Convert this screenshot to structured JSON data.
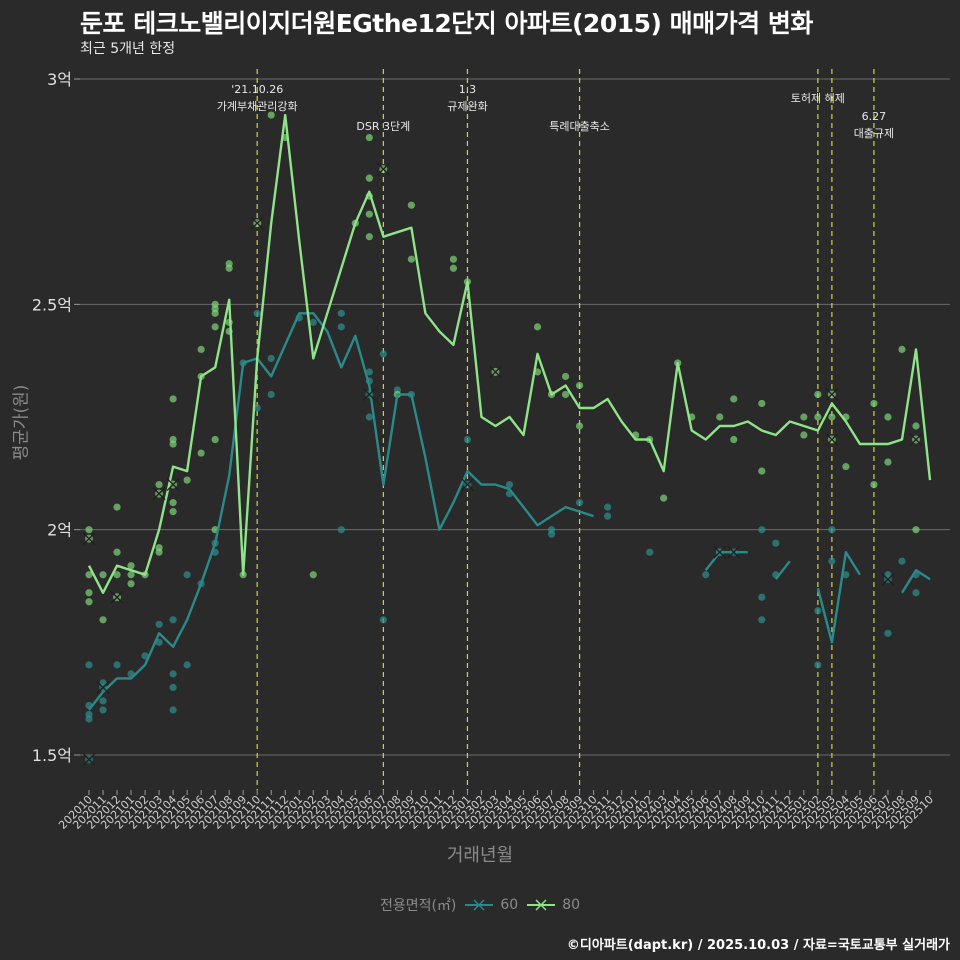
{
  "chart_data": {
    "type": "line",
    "title": "둔포 테크노밸리이지더원EGthe12단지 아파트(2015) 매매가격 변화",
    "subtitle": "최근 5개년 한정",
    "xlabel": "거래년월",
    "ylabel": "평균가(원)",
    "yticks": [
      {
        "value": 1.5,
        "label": "1.5억"
      },
      {
        "value": 2.0,
        "label": "2억"
      },
      {
        "value": 2.5,
        "label": "2.5억"
      },
      {
        "value": 3.0,
        "label": "3억"
      }
    ],
    "ylim": [
      1.42,
      3.07
    ],
    "y_unit": "억원",
    "categories": [
      "202010",
      "202011",
      "202012",
      "202101",
      "202102",
      "202103",
      "202104",
      "202105",
      "202106",
      "202107",
      "202108",
      "202109",
      "202110",
      "202111",
      "202112",
      "202201",
      "202202",
      "202203",
      "202204",
      "202205",
      "202206",
      "202207",
      "202208",
      "202209",
      "202210",
      "202211",
      "202212",
      "202301",
      "202302",
      "202303",
      "202304",
      "202305",
      "202306",
      "202307",
      "202308",
      "202309",
      "202310",
      "202311",
      "202312",
      "202401",
      "202402",
      "202403",
      "202404",
      "202405",
      "202406",
      "202407",
      "202408",
      "202409",
      "202410",
      "202411",
      "202412",
      "202501",
      "202502",
      "202503",
      "202504",
      "202505",
      "202506",
      "202507",
      "202508",
      "202509",
      "202510"
    ],
    "legend_title": "전용면적(㎡)",
    "series": [
      {
        "name": "60",
        "color": "#2a8a8a",
        "values": [
          1.6,
          1.64,
          1.67,
          1.67,
          1.7,
          1.77,
          1.74,
          1.8,
          1.88,
          1.97,
          2.12,
          2.37,
          2.38,
          2.34,
          2.41,
          2.48,
          2.48,
          2.44,
          2.36,
          2.43,
          2.32,
          2.1,
          2.3,
          2.3,
          2.16,
          2.0,
          2.06,
          2.13,
          2.1,
          2.1,
          2.09,
          2.05,
          2.01,
          2.03,
          2.05,
          2.04,
          2.03,
          null,
          null,
          null,
          1.95,
          null,
          null,
          null,
          1.91,
          1.95,
          1.95,
          1.95,
          null,
          1.89,
          1.93,
          null,
          1.87,
          1.75,
          1.95,
          1.9,
          null,
          null,
          1.86,
          1.91,
          1.89
        ]
      },
      {
        "name": "80",
        "color": "#8fe388",
        "values": [
          1.92,
          1.86,
          1.92,
          1.91,
          1.9,
          2.0,
          2.14,
          2.13,
          2.34,
          2.36,
          2.51,
          1.9,
          2.38,
          2.68,
          2.92,
          2.64,
          2.38,
          2.48,
          2.58,
          2.68,
          2.75,
          2.65,
          2.66,
          2.67,
          2.48,
          2.44,
          2.41,
          2.55,
          2.25,
          2.23,
          2.25,
          2.21,
          2.39,
          2.3,
          2.32,
          2.27,
          2.27,
          2.29,
          2.24,
          2.2,
          2.2,
          2.13,
          2.37,
          2.22,
          2.2,
          2.23,
          2.23,
          2.24,
          2.22,
          2.21,
          2.24,
          2.23,
          2.22,
          2.28,
          2.24,
          2.19,
          2.19,
          2.19,
          2.2,
          2.4,
          2.11
        ]
      }
    ],
    "scatter_60": [
      {
        "x": "202010",
        "y": 1.58
      },
      {
        "x": "202010",
        "y": 1.59
      },
      {
        "x": "202010",
        "y": 1.61
      },
      {
        "x": "202010",
        "y": 1.7
      },
      {
        "x": "202011",
        "y": 1.6
      },
      {
        "x": "202011",
        "y": 1.62
      },
      {
        "x": "202011",
        "y": 1.66
      },
      {
        "x": "202012",
        "y": 1.7
      },
      {
        "x": "202101",
        "y": 1.68
      },
      {
        "x": "202102",
        "y": 1.72
      },
      {
        "x": "202103",
        "y": 1.79
      },
      {
        "x": "202103",
        "y": 1.75
      },
      {
        "x": "202104",
        "y": 1.6
      },
      {
        "x": "202104",
        "y": 1.65
      },
      {
        "x": "202104",
        "y": 1.68
      },
      {
        "x": "202104",
        "y": 1.8
      },
      {
        "x": "202105",
        "y": 1.7
      },
      {
        "x": "202105",
        "y": 1.9
      },
      {
        "x": "202106",
        "y": 1.88
      },
      {
        "x": "202107",
        "y": 1.95
      },
      {
        "x": "202107",
        "y": 1.97
      },
      {
        "x": "202109",
        "y": 2.37
      },
      {
        "x": "202110",
        "y": 2.27
      },
      {
        "x": "202110",
        "y": 2.48
      },
      {
        "x": "202111",
        "y": 2.3
      },
      {
        "x": "202111",
        "y": 2.38
      },
      {
        "x": "202201",
        "y": 2.47
      },
      {
        "x": "202202",
        "y": 2.46
      },
      {
        "x": "202204",
        "y": 2.0
      },
      {
        "x": "202204",
        "y": 2.45
      },
      {
        "x": "202204",
        "y": 2.48
      },
      {
        "x": "202206",
        "y": 2.33
      },
      {
        "x": "202206",
        "y": 2.25
      },
      {
        "x": "202206",
        "y": 2.35
      },
      {
        "x": "202207",
        "y": 1.8
      },
      {
        "x": "202207",
        "y": 2.39
      },
      {
        "x": "202208",
        "y": 2.31
      },
      {
        "x": "202209",
        "y": 2.3
      },
      {
        "x": "202301",
        "y": 2.2
      },
      {
        "x": "202304",
        "y": 2.08
      },
      {
        "x": "202304",
        "y": 2.1
      },
      {
        "x": "202307",
        "y": 1.99
      },
      {
        "x": "202307",
        "y": 2.0
      },
      {
        "x": "202309",
        "y": 2.06
      },
      {
        "x": "202311",
        "y": 2.03
      },
      {
        "x": "202311",
        "y": 2.05
      },
      {
        "x": "202402",
        "y": 1.95
      },
      {
        "x": "202406",
        "y": 1.9
      },
      {
        "x": "202407",
        "y": 1.95
      },
      {
        "x": "202410",
        "y": 1.8
      },
      {
        "x": "202410",
        "y": 1.85
      },
      {
        "x": "202410",
        "y": 2.0
      },
      {
        "x": "202411",
        "y": 1.9
      },
      {
        "x": "202411",
        "y": 1.97
      },
      {
        "x": "202502",
        "y": 1.7
      },
      {
        "x": "202502",
        "y": 1.82
      },
      {
        "x": "202503",
        "y": 1.93
      },
      {
        "x": "202503",
        "y": 2.0
      },
      {
        "x": "202504",
        "y": 1.9
      },
      {
        "x": "202507",
        "y": 1.77
      },
      {
        "x": "202507",
        "y": 1.9
      },
      {
        "x": "202508",
        "y": 1.93
      },
      {
        "x": "202509",
        "y": 1.86
      },
      {
        "x": "202509",
        "y": 1.9
      }
    ],
    "scatter_80": [
      {
        "x": "202010",
        "y": 1.84
      },
      {
        "x": "202010",
        "y": 1.86
      },
      {
        "x": "202010",
        "y": 1.9
      },
      {
        "x": "202010",
        "y": 2.0
      },
      {
        "x": "202011",
        "y": 1.8
      },
      {
        "x": "202011",
        "y": 1.9
      },
      {
        "x": "202012",
        "y": 1.9
      },
      {
        "x": "202012",
        "y": 1.95
      },
      {
        "x": "202012",
        "y": 2.05
      },
      {
        "x": "202101",
        "y": 1.88
      },
      {
        "x": "202101",
        "y": 1.9
      },
      {
        "x": "202101",
        "y": 1.92
      },
      {
        "x": "202102",
        "y": 1.9
      },
      {
        "x": "202103",
        "y": 1.95
      },
      {
        "x": "202103",
        "y": 1.96
      },
      {
        "x": "202103",
        "y": 2.1
      },
      {
        "x": "202104",
        "y": 2.04
      },
      {
        "x": "202104",
        "y": 2.06
      },
      {
        "x": "202104",
        "y": 2.19
      },
      {
        "x": "202104",
        "y": 2.2
      },
      {
        "x": "202104",
        "y": 2.29
      },
      {
        "x": "202105",
        "y": 2.11
      },
      {
        "x": "202106",
        "y": 2.17
      },
      {
        "x": "202106",
        "y": 2.34
      },
      {
        "x": "202106",
        "y": 2.4
      },
      {
        "x": "202107",
        "y": 2.0
      },
      {
        "x": "202107",
        "y": 2.2
      },
      {
        "x": "202107",
        "y": 2.45
      },
      {
        "x": "202107",
        "y": 2.48
      },
      {
        "x": "202107",
        "y": 2.49
      },
      {
        "x": "202107",
        "y": 2.5
      },
      {
        "x": "202108",
        "y": 2.44
      },
      {
        "x": "202108",
        "y": 2.46
      },
      {
        "x": "202108",
        "y": 2.58
      },
      {
        "x": "202108",
        "y": 2.59
      },
      {
        "x": "202109",
        "y": 1.9
      },
      {
        "x": "202111",
        "y": 2.92
      },
      {
        "x": "202112",
        "y": 2.87
      },
      {
        "x": "202202",
        "y": 1.9
      },
      {
        "x": "202205",
        "y": 2.68
      },
      {
        "x": "202206",
        "y": 2.7
      },
      {
        "x": "202206",
        "y": 2.74
      },
      {
        "x": "202206",
        "y": 2.78
      },
      {
        "x": "202206",
        "y": 2.87
      },
      {
        "x": "202206",
        "y": 2.65
      },
      {
        "x": "202208",
        "y": 2.3
      },
      {
        "x": "202209",
        "y": 2.6
      },
      {
        "x": "202209",
        "y": 2.72
      },
      {
        "x": "202212",
        "y": 2.58
      },
      {
        "x": "202212",
        "y": 2.6
      },
      {
        "x": "202301",
        "y": 2.55
      },
      {
        "x": "202306",
        "y": 2.35
      },
      {
        "x": "202306",
        "y": 2.45
      },
      {
        "x": "202307",
        "y": 2.3
      },
      {
        "x": "202308",
        "y": 2.34
      },
      {
        "x": "202308",
        "y": 2.3
      },
      {
        "x": "202309",
        "y": 2.23
      },
      {
        "x": "202309",
        "y": 2.32
      },
      {
        "x": "202401",
        "y": 2.21
      },
      {
        "x": "202402",
        "y": 2.2
      },
      {
        "x": "202403",
        "y": 2.07
      },
      {
        "x": "202404",
        "y": 2.37
      },
      {
        "x": "202405",
        "y": 2.25
      },
      {
        "x": "202407",
        "y": 2.25
      },
      {
        "x": "202408",
        "y": 2.2
      },
      {
        "x": "202408",
        "y": 2.29
      },
      {
        "x": "202410",
        "y": 2.13
      },
      {
        "x": "202410",
        "y": 2.28
      },
      {
        "x": "202501",
        "y": 2.21
      },
      {
        "x": "202501",
        "y": 2.25
      },
      {
        "x": "202502",
        "y": 2.25
      },
      {
        "x": "202502",
        "y": 2.3
      },
      {
        "x": "202503",
        "y": 2.25
      },
      {
        "x": "202504",
        "y": 2.14
      },
      {
        "x": "202504",
        "y": 2.25
      },
      {
        "x": "202506",
        "y": 2.1
      },
      {
        "x": "202506",
        "y": 2.28
      },
      {
        "x": "202507",
        "y": 2.15
      },
      {
        "x": "202507",
        "y": 2.25
      },
      {
        "x": "202508",
        "y": 2.4
      },
      {
        "x": "202509",
        "y": 2.0
      },
      {
        "x": "202509",
        "y": 2.23
      }
    ],
    "cross_60": [
      {
        "x": "202010",
        "y": 1.49
      },
      {
        "x": "202011",
        "y": 1.65
      },
      {
        "x": "202206",
        "y": 2.3
      },
      {
        "x": "202301",
        "y": 2.1
      },
      {
        "x": "202407",
        "y": 1.95
      },
      {
        "x": "202408",
        "y": 1.95
      },
      {
        "x": "202507",
        "y": 1.89
      }
    ],
    "cross_80": [
      {
        "x": "202010",
        "y": 1.98
      },
      {
        "x": "202012",
        "y": 1.85
      },
      {
        "x": "202103",
        "y": 2.08
      },
      {
        "x": "202104",
        "y": 2.1
      },
      {
        "x": "202110",
        "y": 2.68
      },
      {
        "x": "202207",
        "y": 2.8
      },
      {
        "x": "202303",
        "y": 2.35
      },
      {
        "x": "202503",
        "y": 2.3
      },
      {
        "x": "202503",
        "y": 2.2
      },
      {
        "x": "202509",
        "y": 2.2
      }
    ],
    "annotations": [
      {
        "x": "202110",
        "lines": [
          "'21.10.26",
          "가계부채관리강화"
        ]
      },
      {
        "x": "202207",
        "lines": [
          "DSR 3단계"
        ]
      },
      {
        "x": "202301",
        "lines": [
          "1.3",
          "규제완화"
        ]
      },
      {
        "x": "202309",
        "lines": [
          "특례대출축소"
        ]
      },
      {
        "x": "202502",
        "lines": [
          "토허제 해제"
        ]
      },
      {
        "x": "202503",
        "lines": []
      },
      {
        "x": "202506",
        "lines": [
          "6.27",
          "대출규제"
        ]
      }
    ],
    "legend_position": "bottom",
    "grid": true
  },
  "caption": "©디아파트(dapt.kr) / 2025.10.03 / 자료=국토교통부 실거래가"
}
